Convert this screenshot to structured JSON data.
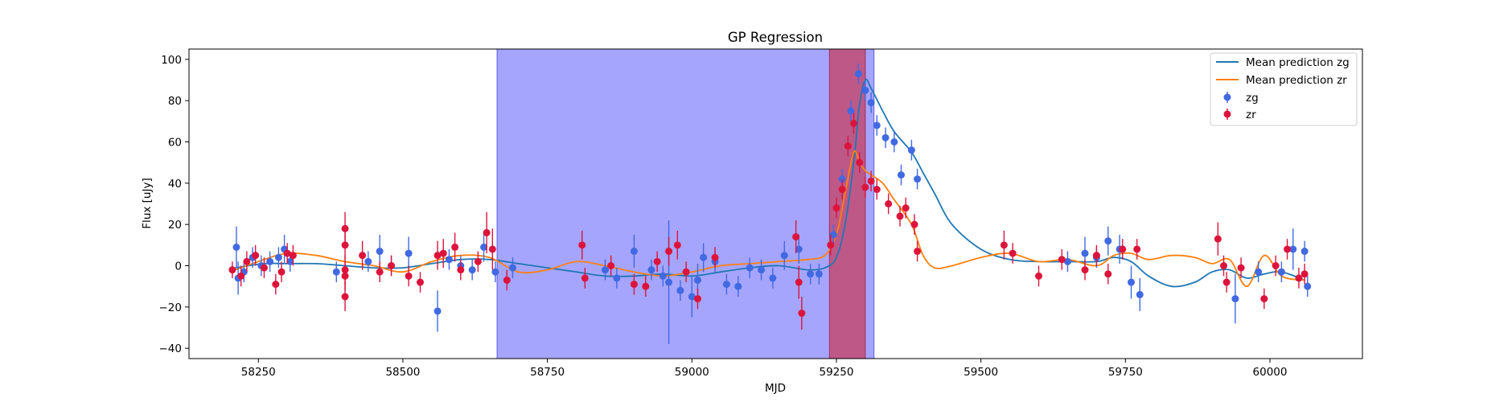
{
  "chart_data": {
    "type": "scatter",
    "title": "GP Regression",
    "xlabel": "MJD",
    "ylabel": "Flux [uJy]",
    "xlim": [
      58130,
      60160
    ],
    "ylim": [
      -45,
      105
    ],
    "xticks": [
      58250,
      58500,
      58750,
      59000,
      59250,
      59500,
      59750,
      60000
    ],
    "yticks": [
      -40,
      -20,
      0,
      20,
      40,
      60,
      80,
      100
    ],
    "legend_position": "top-right",
    "colors": {
      "zg_line": "#1f77b4",
      "zr_line": "#ff7f0e",
      "zg_points": "#4169e1",
      "zr_points": "#dc143c",
      "span_blue": "#7b7bfc",
      "span_red": "#c0507a"
    },
    "shaded_regions": [
      {
        "x0": 58663,
        "x1": 59315,
        "color": "blue"
      },
      {
        "x0": 59238,
        "x1": 59300,
        "color": "red"
      }
    ],
    "lines": [
      {
        "name": "Mean prediction zg",
        "color": "#1f77b4",
        "x": [
          58210,
          58260,
          58300,
          58350,
          58400,
          58450,
          58500,
          58550,
          58600,
          58650,
          58700,
          58750,
          58800,
          58850,
          58900,
          58950,
          59000,
          59050,
          59100,
          59150,
          59200,
          59230,
          59250,
          59265,
          59280,
          59290,
          59300,
          59310,
          59330,
          59350,
          59380,
          59400,
          59420,
          59450,
          59500,
          59550,
          59600,
          59650,
          59700,
          59730,
          59760,
          59790,
          59830,
          59870,
          59900,
          59930,
          59960,
          59990,
          60020,
          60060
        ],
        "y": [
          -1,
          1,
          1,
          1,
          0,
          -1,
          -1,
          1,
          3,
          3,
          1,
          -1,
          -3,
          -5,
          -5,
          -4,
          -5,
          -3,
          -1,
          0,
          -2,
          -1,
          4,
          20,
          50,
          78,
          90,
          86,
          75,
          65,
          55,
          45,
          35,
          20,
          8,
          3,
          2,
          2,
          2,
          4,
          2,
          -5,
          -10,
          -8,
          -3,
          -2,
          -6,
          -4,
          -3,
          -7
        ]
      },
      {
        "name": "Mean prediction zr",
        "color": "#ff7f0e",
        "x": [
          58210,
          58260,
          58300,
          58350,
          58400,
          58450,
          58500,
          58550,
          58600,
          58650,
          58700,
          58750,
          58800,
          58850,
          58900,
          58950,
          59000,
          59050,
          59100,
          59150,
          59200,
          59230,
          59250,
          59265,
          59280,
          59290,
          59300,
          59310,
          59330,
          59350,
          59380,
          59400,
          59420,
          59450,
          59500,
          59550,
          59600,
          59650,
          59700,
          59730,
          59760,
          59790,
          59830,
          59870,
          59900,
          59930,
          59960,
          59990,
          60020,
          60060
        ],
        "y": [
          -2,
          3,
          6,
          5,
          2,
          0,
          -3,
          2,
          5,
          4,
          -3,
          -2,
          2,
          0,
          -3,
          -5,
          -3,
          0,
          1,
          2,
          3,
          5,
          15,
          35,
          55,
          50,
          46,
          44,
          40,
          32,
          20,
          5,
          -1,
          0,
          4,
          6,
          2,
          3,
          0,
          5,
          6,
          3,
          5,
          4,
          1,
          3,
          -10,
          5,
          -5,
          -7
        ]
      }
    ],
    "series": [
      {
        "name": "zg",
        "color": "#4169e1",
        "points": [
          [
            58212,
            9,
            10
          ],
          [
            58215,
            -6,
            8
          ],
          [
            58225,
            -3,
            5
          ],
          [
            58240,
            4,
            5
          ],
          [
            58255,
            0,
            5
          ],
          [
            58270,
            2,
            5
          ],
          [
            58285,
            4,
            5
          ],
          [
            58295,
            8,
            7
          ],
          [
            58305,
            2,
            5
          ],
          [
            58385,
            -3,
            5
          ],
          [
            58440,
            2,
            5
          ],
          [
            58460,
            7,
            8
          ],
          [
            58480,
            0,
            5
          ],
          [
            58510,
            6,
            8
          ],
          [
            58560,
            -22,
            10
          ],
          [
            58580,
            3,
            5
          ],
          [
            58600,
            0,
            5
          ],
          [
            58620,
            -2,
            5
          ],
          [
            58640,
            9,
            7
          ],
          [
            58660,
            -3,
            5
          ],
          [
            58690,
            -1,
            5
          ],
          [
            58850,
            -2,
            5
          ],
          [
            58870,
            -6,
            5
          ],
          [
            58900,
            7,
            8
          ],
          [
            58930,
            -2,
            5
          ],
          [
            58950,
            -5,
            5
          ],
          [
            58960,
            -8,
            30
          ],
          [
            58980,
            -12,
            5
          ],
          [
            59000,
            -15,
            10
          ],
          [
            59010,
            -7,
            8
          ],
          [
            59020,
            4,
            7
          ],
          [
            59040,
            2,
            5
          ],
          [
            59060,
            -9,
            5
          ],
          [
            59080,
            -10,
            5
          ],
          [
            59100,
            -1,
            5
          ],
          [
            59120,
            -2,
            5
          ],
          [
            59140,
            -6,
            5
          ],
          [
            59160,
            5,
            7
          ],
          [
            59185,
            8,
            7
          ],
          [
            59205,
            -4,
            5
          ],
          [
            59220,
            -4,
            5
          ],
          [
            59245,
            15,
            5
          ],
          [
            59260,
            42,
            5
          ],
          [
            59275,
            75,
            5
          ],
          [
            59288,
            93,
            5
          ],
          [
            59300,
            85,
            5
          ],
          [
            59310,
            79,
            5
          ],
          [
            59320,
            68,
            5
          ],
          [
            59335,
            62,
            5
          ],
          [
            59350,
            60,
            5
          ],
          [
            59362,
            44,
            5
          ],
          [
            59380,
            56,
            5
          ],
          [
            59390,
            42,
            5
          ],
          [
            59650,
            2,
            5
          ],
          [
            59680,
            6,
            8
          ],
          [
            59700,
            4,
            5
          ],
          [
            59720,
            12,
            7
          ],
          [
            59740,
            8,
            7
          ],
          [
            59760,
            -8,
            8
          ],
          [
            59775,
            -14,
            8
          ],
          [
            59940,
            -16,
            12
          ],
          [
            59980,
            -3,
            5
          ],
          [
            60020,
            -3,
            5
          ],
          [
            60040,
            8,
            10
          ],
          [
            60060,
            7,
            5
          ],
          [
            60065,
            -10,
            5
          ]
        ]
      },
      {
        "name": "zr",
        "color": "#dc143c",
        "points": [
          [
            58205,
            -2,
            4
          ],
          [
            58220,
            -5,
            5
          ],
          [
            58230,
            2,
            5
          ],
          [
            58245,
            5,
            5
          ],
          [
            58260,
            -1,
            5
          ],
          [
            58280,
            -9,
            5
          ],
          [
            58290,
            -3,
            5
          ],
          [
            58300,
            6,
            5
          ],
          [
            58310,
            5,
            5
          ],
          [
            58400,
            18,
            8
          ],
          [
            58400,
            10,
            7
          ],
          [
            58400,
            -2,
            7
          ],
          [
            58400,
            -15,
            7
          ],
          [
            58400,
            -5,
            7
          ],
          [
            58430,
            5,
            7
          ],
          [
            58460,
            -3,
            5
          ],
          [
            58480,
            0,
            5
          ],
          [
            58510,
            -5,
            5
          ],
          [
            58530,
            -8,
            5
          ],
          [
            58560,
            5,
            7
          ],
          [
            58570,
            6,
            7
          ],
          [
            58590,
            9,
            7
          ],
          [
            58600,
            -2,
            5
          ],
          [
            58630,
            2,
            5
          ],
          [
            58645,
            16,
            10
          ],
          [
            58655,
            8,
            10
          ],
          [
            58680,
            -7,
            5
          ],
          [
            58810,
            10,
            7
          ],
          [
            58815,
            -6,
            5
          ],
          [
            58860,
            0,
            5
          ],
          [
            58900,
            -9,
            5
          ],
          [
            58920,
            -10,
            5
          ],
          [
            58940,
            2,
            5
          ],
          [
            58960,
            7,
            7
          ],
          [
            58975,
            10,
            7
          ],
          [
            58990,
            -3,
            5
          ],
          [
            59010,
            -16,
            5
          ],
          [
            59040,
            4,
            5
          ],
          [
            59180,
            14,
            8
          ],
          [
            59185,
            -8,
            8
          ],
          [
            59190,
            -23,
            8
          ],
          [
            59240,
            10,
            5
          ],
          [
            59250,
            28,
            5
          ],
          [
            59260,
            37,
            5
          ],
          [
            59270,
            58,
            5
          ],
          [
            59280,
            69,
            5
          ],
          [
            59290,
            50,
            5
          ],
          [
            59300,
            38,
            5
          ],
          [
            59310,
            41,
            5
          ],
          [
            59320,
            37,
            5
          ],
          [
            59340,
            30,
            5
          ],
          [
            59360,
            24,
            5
          ],
          [
            59370,
            28,
            5
          ],
          [
            59385,
            20,
            5
          ],
          [
            59390,
            7,
            5
          ],
          [
            59540,
            10,
            7
          ],
          [
            59555,
            6,
            5
          ],
          [
            59600,
            -5,
            5
          ],
          [
            59640,
            3,
            5
          ],
          [
            59680,
            -2,
            5
          ],
          [
            59700,
            5,
            5
          ],
          [
            59720,
            -4,
            5
          ],
          [
            59745,
            8,
            5
          ],
          [
            59770,
            8,
            5
          ],
          [
            59910,
            13,
            8
          ],
          [
            59920,
            0,
            5
          ],
          [
            59925,
            -8,
            5
          ],
          [
            59950,
            -1,
            5
          ],
          [
            59990,
            -16,
            5
          ],
          [
            60010,
            0,
            5
          ],
          [
            60030,
            8,
            5
          ],
          [
            60050,
            -6,
            5
          ],
          [
            60060,
            -4,
            5
          ]
        ]
      }
    ]
  }
}
